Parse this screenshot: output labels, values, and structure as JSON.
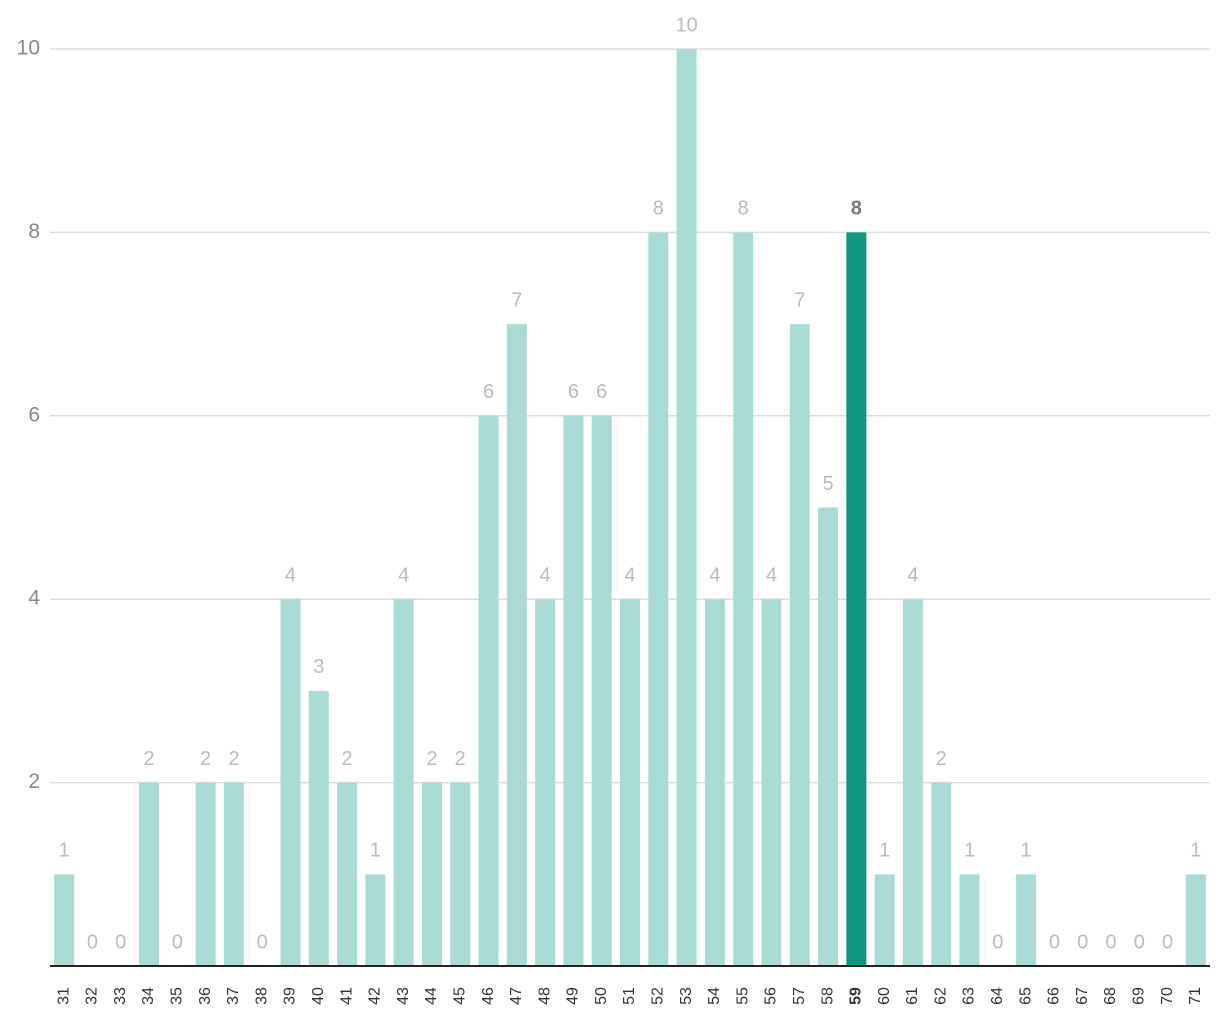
{
  "chart_data": {
    "type": "bar",
    "categories": [
      "31",
      "32",
      "33",
      "34",
      "35",
      "36",
      "37",
      "38",
      "39",
      "40",
      "41",
      "42",
      "43",
      "44",
      "45",
      "46",
      "47",
      "48",
      "49",
      "50",
      "51",
      "52",
      "53",
      "54",
      "55",
      "56",
      "57",
      "58",
      "59",
      "60",
      "61",
      "62",
      "63",
      "64",
      "65",
      "66",
      "67",
      "68",
      "69",
      "70",
      "71"
    ],
    "values": [
      1,
      0,
      0,
      2,
      0,
      2,
      2,
      0,
      4,
      3,
      2,
      1,
      4,
      2,
      2,
      6,
      7,
      4,
      6,
      6,
      4,
      8,
      10,
      4,
      8,
      4,
      7,
      5,
      8,
      1,
      4,
      2,
      1,
      0,
      1,
      0,
      0,
      0,
      0,
      0,
      1
    ],
    "color": "#a9dbd4",
    "highlight": "59",
    "highlight_color": "#0e9682",
    "ylim": [
      0,
      10
    ],
    "yticks": [
      2,
      4,
      6,
      8,
      10
    ],
    "grid": true
  }
}
